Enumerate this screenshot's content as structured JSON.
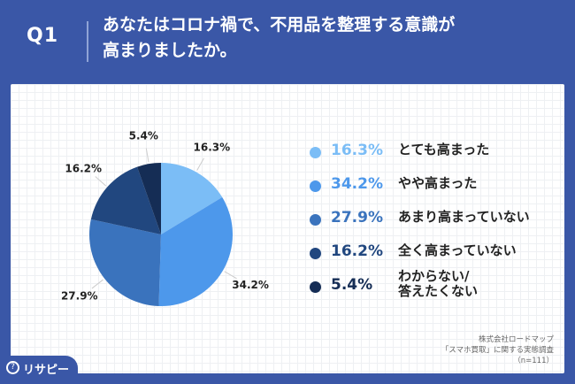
{
  "header": {
    "question_label": "Q1",
    "title_line1": "あなたはコロナ禍で、不用品を整理する意識が",
    "title_line2": "高まりましたか。"
  },
  "chart_data": {
    "type": "pie",
    "slices": [
      {
        "label": "とても高まった",
        "value": 16.3,
        "value_label": "16.3%",
        "color": "#7bbdf6"
      },
      {
        "label": "やや高まった",
        "value": 34.2,
        "value_label": "34.2%",
        "color": "#4d98eb"
      },
      {
        "label": "あまり高まっていない",
        "value": 27.9,
        "value_label": "27.9%",
        "color": "#3a73bd"
      },
      {
        "label": "全く高まっていない",
        "value": 16.2,
        "value_label": "16.2%",
        "color": "#21477f"
      },
      {
        "label_line1": "わからない/",
        "label_line2": "答えたくない",
        "value": 5.4,
        "value_label": "5.4%",
        "color": "#152d55"
      }
    ],
    "legend_placement": "right"
  },
  "footer": {
    "line1": "株式会社ロードマップ",
    "line2": "「スマホ買取」に関する実態調査",
    "line3": "（n=111）"
  },
  "brand": {
    "icon_glyph": "?",
    "name": "リサピー"
  },
  "colors": {
    "background": "#3a57a7",
    "card": "#ffffff"
  }
}
